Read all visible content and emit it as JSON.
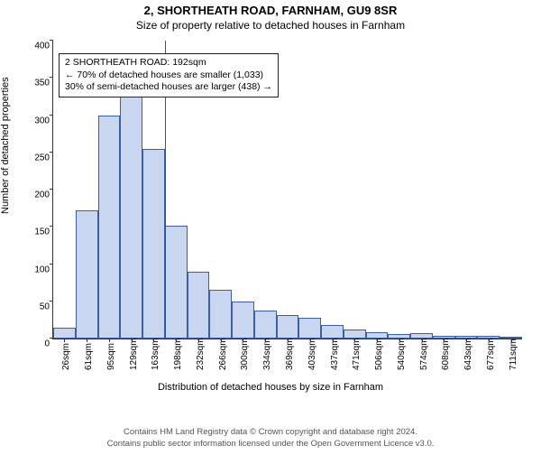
{
  "header": {
    "title1": "2, SHORTHEATH ROAD, FARNHAM, GU9 8SR",
    "title2": "Size of property relative to detached houses in Farnham"
  },
  "axes": {
    "ylabel": "Number of detached properties",
    "xlabel": "Distribution of detached houses by size in Farnham",
    "ylim": [
      0,
      400
    ],
    "ytick_step": 50,
    "tick_fontsize": 10,
    "label_fontsize": 11
  },
  "chart": {
    "type": "histogram",
    "categories": [
      "26sqm",
      "61sqm",
      "95sqm",
      "129sqm",
      "163sqm",
      "198sqm",
      "232sqm",
      "266sqm",
      "300sqm",
      "334sqm",
      "369sqm",
      "403sqm",
      "437sqm",
      "471sqm",
      "506sqm",
      "540sqm",
      "574sqm",
      "608sqm",
      "643sqm",
      "677sqm",
      "711sqm"
    ],
    "values": [
      15,
      172,
      300,
      340,
      255,
      152,
      90,
      65,
      50,
      38,
      32,
      28,
      18,
      12,
      9,
      6,
      7,
      4,
      4,
      4,
      3
    ],
    "bar_fill": "#c9d6ef",
    "bar_stroke": "#3a5fa6",
    "background_color": "#ffffff",
    "axis_color": "#333333",
    "refline_index": 5,
    "refline_color": "#d11919",
    "refline_width": 1
  },
  "annotation": {
    "lines": [
      "2 SHORTHEATH ROAD: 192sqm",
      "← 70% of detached houses are smaller (1,033)",
      "30% of semi-detached houses are larger (438) →"
    ],
    "border_color": "#222222",
    "background": "#ffffff",
    "fontsize": 10.5
  },
  "footer": {
    "line1": "Contains HM Land Registry data © Crown copyright and database right 2024.",
    "line2": "Contains public sector information licensed under the Open Government Licence v3.0."
  }
}
